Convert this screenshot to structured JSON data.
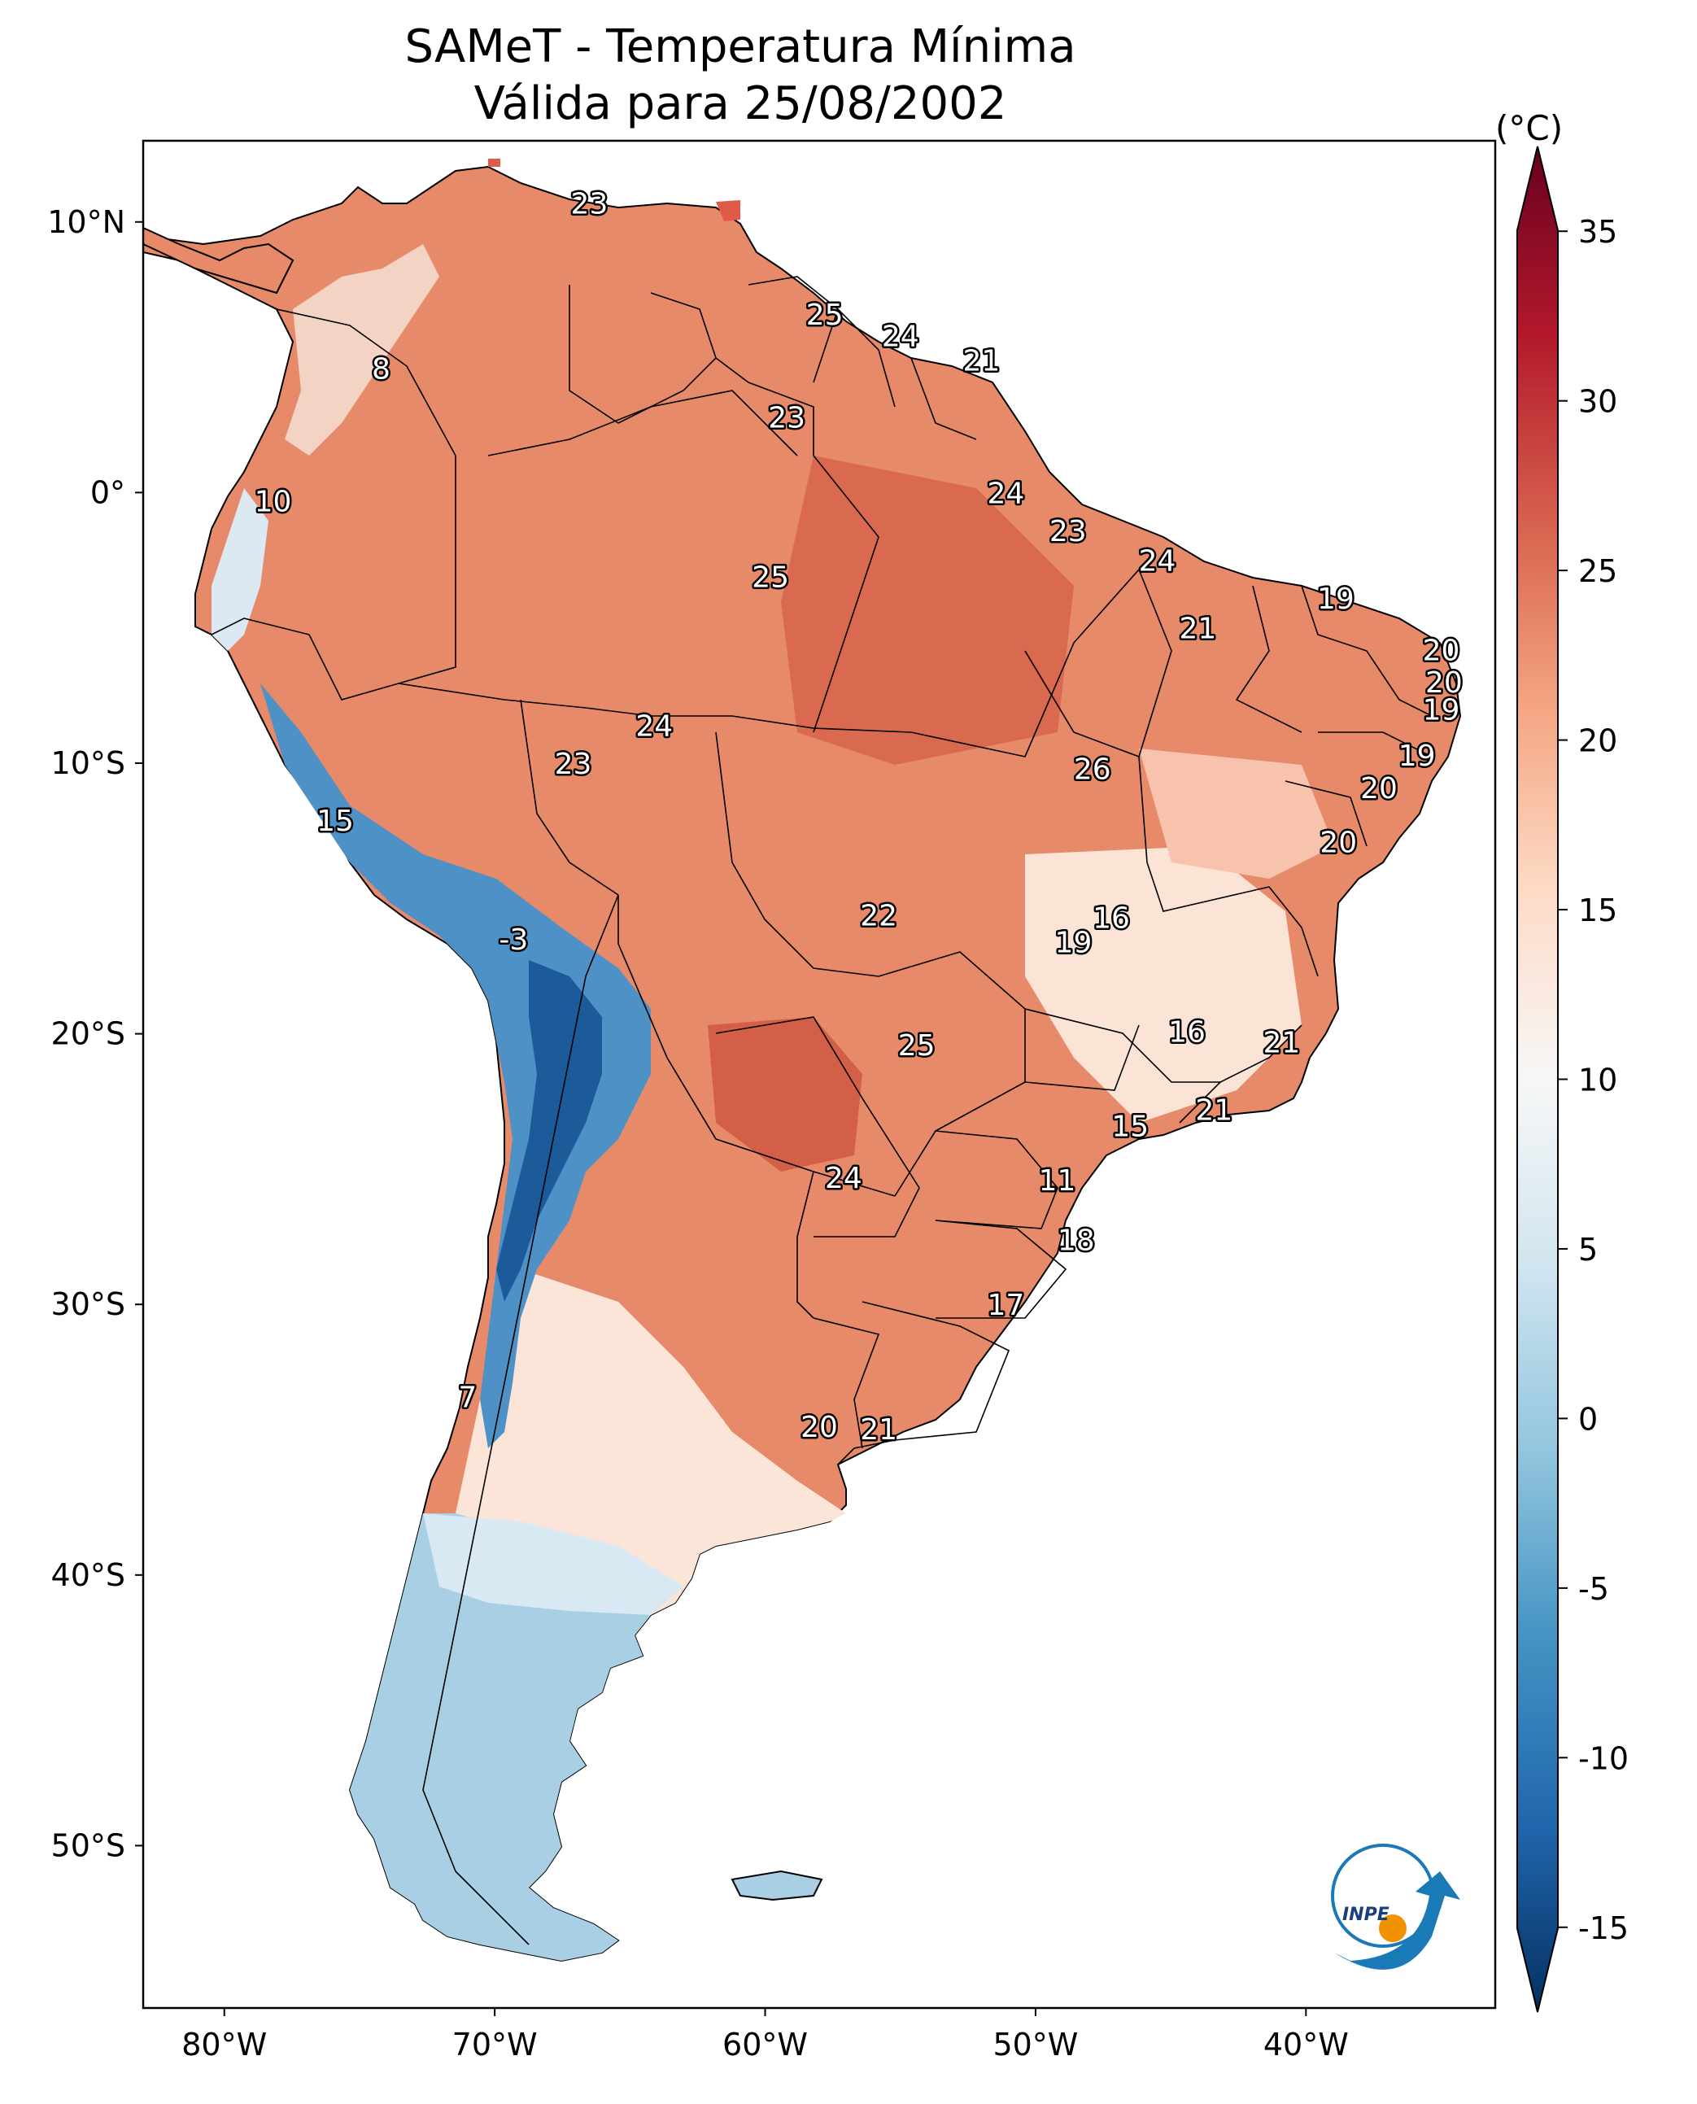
{
  "title_line1": "SAMeT - Temperatura Mínima",
  "title_line2": "Válida para 25/08/2002",
  "map": {
    "lon_range": [
      -83,
      -33
    ],
    "lat_range": [
      -56,
      13
    ],
    "lon_ticks": [
      {
        "value": -80,
        "label": "80°W"
      },
      {
        "value": -70,
        "label": "70°W"
      },
      {
        "value": -60,
        "label": "60°W"
      },
      {
        "value": -50,
        "label": "50°W"
      },
      {
        "value": -40,
        "label": "40°W"
      }
    ],
    "lat_ticks": [
      {
        "value": 10,
        "label": "10°N"
      },
      {
        "value": 0,
        "label": "0°"
      },
      {
        "value": -10,
        "label": "10°S"
      },
      {
        "value": -20,
        "label": "20°S"
      },
      {
        "value": -30,
        "label": "30°S"
      },
      {
        "value": -40,
        "label": "40°S"
      },
      {
        "value": -50,
        "label": "50°S"
      }
    ],
    "point_labels": [
      {
        "lon": -66.5,
        "lat": 10.7,
        "text": "23"
      },
      {
        "lon": -57.8,
        "lat": 6.6,
        "text": "25"
      },
      {
        "lon": -55.0,
        "lat": 5.8,
        "text": "24"
      },
      {
        "lon": -52.0,
        "lat": 4.9,
        "text": "21"
      },
      {
        "lon": -74.2,
        "lat": 4.6,
        "text": "8"
      },
      {
        "lon": -59.2,
        "lat": 2.8,
        "text": "23"
      },
      {
        "lon": -51.1,
        "lat": 0.0,
        "text": "24"
      },
      {
        "lon": -78.2,
        "lat": -0.3,
        "text": "10"
      },
      {
        "lon": -48.8,
        "lat": -1.4,
        "text": "23"
      },
      {
        "lon": -59.8,
        "lat": -3.1,
        "text": "25"
      },
      {
        "lon": -45.5,
        "lat": -2.5,
        "text": "24"
      },
      {
        "lon": -38.9,
        "lat": -3.9,
        "text": "19"
      },
      {
        "lon": -44.0,
        "lat": -5.0,
        "text": "21"
      },
      {
        "lon": -35.0,
        "lat": -5.8,
        "text": "20"
      },
      {
        "lon": -34.9,
        "lat": -7.0,
        "text": "20"
      },
      {
        "lon": -35.0,
        "lat": -8.0,
        "text": "19"
      },
      {
        "lon": -64.1,
        "lat": -8.6,
        "text": "24"
      },
      {
        "lon": -35.9,
        "lat": -9.7,
        "text": "19"
      },
      {
        "lon": -67.1,
        "lat": -10.0,
        "text": "23"
      },
      {
        "lon": -47.9,
        "lat": -10.2,
        "text": "26"
      },
      {
        "lon": -37.3,
        "lat": -10.9,
        "text": "20"
      },
      {
        "lon": -38.8,
        "lat": -12.9,
        "text": "20"
      },
      {
        "lon": -75.9,
        "lat": -12.1,
        "text": "15"
      },
      {
        "lon": -55.8,
        "lat": -15.6,
        "text": "22"
      },
      {
        "lon": -47.2,
        "lat": -15.7,
        "text": "16"
      },
      {
        "lon": -48.6,
        "lat": -16.6,
        "text": "19"
      },
      {
        "lon": -69.3,
        "lat": -16.5,
        "text": "-3"
      },
      {
        "lon": -44.4,
        "lat": -19.9,
        "text": "16"
      },
      {
        "lon": -54.4,
        "lat": -20.4,
        "text": "25"
      },
      {
        "lon": -40.9,
        "lat": -20.3,
        "text": "21"
      },
      {
        "lon": -43.4,
        "lat": -22.8,
        "text": "21"
      },
      {
        "lon": -46.5,
        "lat": -23.4,
        "text": "15"
      },
      {
        "lon": -57.1,
        "lat": -25.3,
        "text": "24"
      },
      {
        "lon": -49.2,
        "lat": -25.4,
        "text": "11"
      },
      {
        "lon": -48.5,
        "lat": -27.6,
        "text": "18"
      },
      {
        "lon": -51.1,
        "lat": -30.0,
        "text": "17"
      },
      {
        "lon": -71.0,
        "lat": -33.4,
        "text": "7"
      },
      {
        "lon": -58.0,
        "lat": -34.5,
        "text": "20"
      },
      {
        "lon": -55.8,
        "lat": -34.6,
        "text": "21"
      }
    ]
  },
  "colorbar": {
    "unit": "(°C)",
    "range": [
      -17.5,
      37.5
    ],
    "tick_values": [
      -15,
      -10,
      -5,
      0,
      5,
      10,
      15,
      20,
      25,
      30,
      35
    ],
    "tick_labels": [
      "-15",
      "-10",
      "-5",
      "0",
      "5",
      "10",
      "15",
      "20",
      "25",
      "30",
      "35"
    ],
    "colors": [
      "#053061",
      "#2166ac",
      "#4393c3",
      "#92c5de",
      "#d1e5f0",
      "#f7f7f7",
      "#fddbc7",
      "#f4a582",
      "#d6604d",
      "#b2182b",
      "#67001f"
    ]
  },
  "logo_text": "INPE"
}
